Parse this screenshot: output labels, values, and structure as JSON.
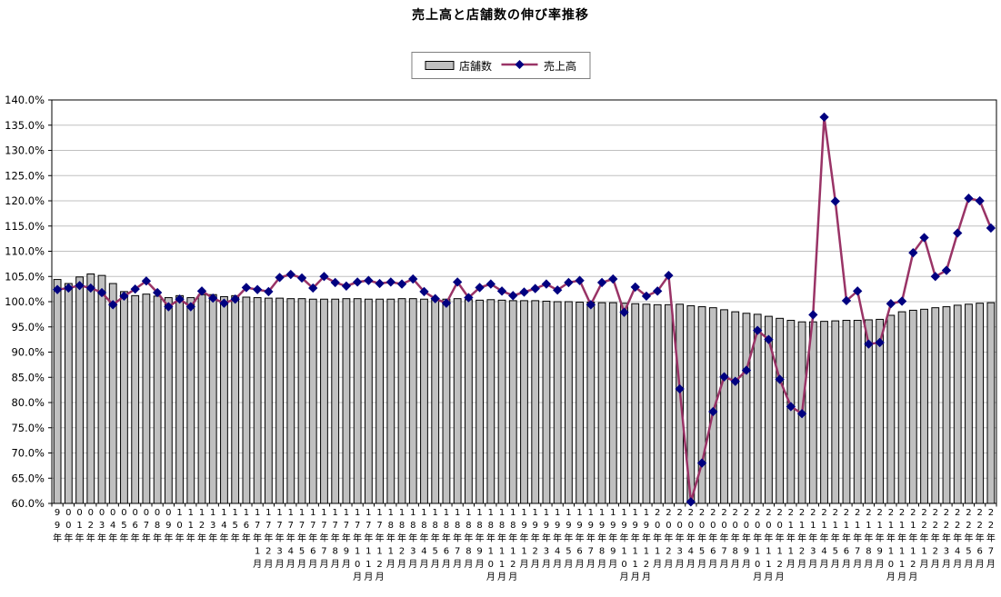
{
  "title": "売上高と店舗数の伸び率推移",
  "legend": {
    "bar_label": "店舗数",
    "line_label": "売上高"
  },
  "colors": {
    "background": "#ffffff",
    "bar_fill": "#c0c0c0",
    "bar_stroke": "#000000",
    "line": "#993366",
    "marker": "#000080",
    "grid": "#c0c0c0",
    "axis": "#000000",
    "text": "#000000"
  },
  "chart_data": {
    "type": "bar+line",
    "title": "売上高と店舗数の伸び率推移",
    "xlabel": "",
    "ylabel": "",
    "ylim": [
      60,
      140
    ],
    "ytick_step": 5,
    "ytick_labels": [
      "140.0%",
      "135.0%",
      "130.0%",
      "125.0%",
      "120.0%",
      "115.0%",
      "110.0%",
      "105.0%",
      "100.0%",
      "95.0%",
      "90.0%",
      "85.0%",
      "80.0%",
      "75.0%",
      "70.0%",
      "65.0%",
      "60.0%"
    ],
    "grid": true,
    "legend_position": "top-center",
    "categories": [
      "99年",
      "00年",
      "01年",
      "02年",
      "03年",
      "04年",
      "05年",
      "06年",
      "07年",
      "08年",
      "09年",
      "10年",
      "11年",
      "12年",
      "13年",
      "14年",
      "15年",
      "16年",
      "17年1月",
      "17年2月",
      "17年3月",
      "17年4月",
      "17年5月",
      "17年6月",
      "17年7月",
      "17年8月",
      "17年9月",
      "17年10月",
      "17年11月",
      "17年12月",
      "18年1月",
      "18年2月",
      "18年3月",
      "18年4月",
      "18年5月",
      "18年6月",
      "18年7月",
      "18年8月",
      "18年9月",
      "18年10月",
      "18年11月",
      "18年12月",
      "19年1月",
      "19年2月",
      "19年3月",
      "19年4月",
      "19年5月",
      "19年6月",
      "19年7月",
      "19年8月",
      "19年9月",
      "19年10月",
      "19年11月",
      "19年12月",
      "20年1月",
      "20年2月",
      "20年3月",
      "20年4月",
      "20年5月",
      "20年6月",
      "20年7月",
      "20年8月",
      "20年9月",
      "20年10月",
      "20年11月",
      "20年12月",
      "21年1月",
      "21年2月",
      "21年3月",
      "21年4月",
      "21年5月",
      "21年6月",
      "21年7月",
      "21年8月",
      "21年9月",
      "21年10月",
      "21年11月",
      "21年12月",
      "22年1月",
      "22年2月",
      "22年3月",
      "22年4月",
      "22年5月",
      "22年6月",
      "22年7月"
    ],
    "series": [
      {
        "name": "店舗数",
        "type": "bar",
        "color": "#c0c0c0",
        "values": [
          104.4,
          103.6,
          104.9,
          105.5,
          105.2,
          103.6,
          102.0,
          101.2,
          101.5,
          101.1,
          100.8,
          101.2,
          100.8,
          101.4,
          101.4,
          101.0,
          101.2,
          100.9,
          100.8,
          100.7,
          100.7,
          100.6,
          100.6,
          100.5,
          100.5,
          100.5,
          100.6,
          100.6,
          100.5,
          100.5,
          100.5,
          100.6,
          100.6,
          100.5,
          100.4,
          100.5,
          100.6,
          100.4,
          100.3,
          100.4,
          100.3,
          100.2,
          100.2,
          100.2,
          100.1,
          100.0,
          100.0,
          99.9,
          99.9,
          99.8,
          99.8,
          99.7,
          99.6,
          99.5,
          99.4,
          99.4,
          99.5,
          99.2,
          99.0,
          98.8,
          98.4,
          98.0,
          97.7,
          97.5,
          97.1,
          96.7,
          96.3,
          96.0,
          96.0,
          96.1,
          96.2,
          96.3,
          96.3,
          96.4,
          96.5,
          97.3,
          98.0,
          98.3,
          98.5,
          98.8,
          99.0,
          99.3,
          99.5,
          99.7,
          99.8
        ]
      },
      {
        "name": "売上高",
        "type": "line",
        "color": "#993366",
        "marker_color": "#000080",
        "values": [
          102.4,
          102.7,
          103.2,
          102.7,
          101.8,
          99.4,
          101.1,
          102.5,
          104.1,
          101.8,
          99.0,
          100.5,
          99.0,
          102.1,
          100.7,
          99.7,
          100.5,
          102.8,
          102.4,
          102.0,
          104.8,
          105.4,
          104.7,
          102.7,
          105.0,
          103.8,
          103.1,
          103.9,
          104.2,
          103.6,
          103.9,
          103.5,
          104.5,
          102.0,
          100.6,
          99.7,
          103.9,
          100.8,
          102.8,
          103.5,
          102.1,
          101.2,
          101.9,
          102.6,
          103.5,
          102.3,
          103.8,
          104.2,
          99.4,
          103.8,
          104.5,
          97.9,
          102.9,
          101.1,
          102.1,
          105.2,
          82.7,
          60.3,
          68.0,
          78.2,
          85.1,
          84.2,
          86.4,
          94.3,
          92.5,
          84.6,
          79.2,
          77.8,
          97.4,
          136.6,
          119.9,
          100.2,
          102.1,
          91.6,
          91.9,
          99.6,
          100.1,
          109.7,
          112.7,
          105.0,
          106.2,
          113.6,
          120.5,
          120.0,
          114.6
        ]
      }
    ]
  }
}
